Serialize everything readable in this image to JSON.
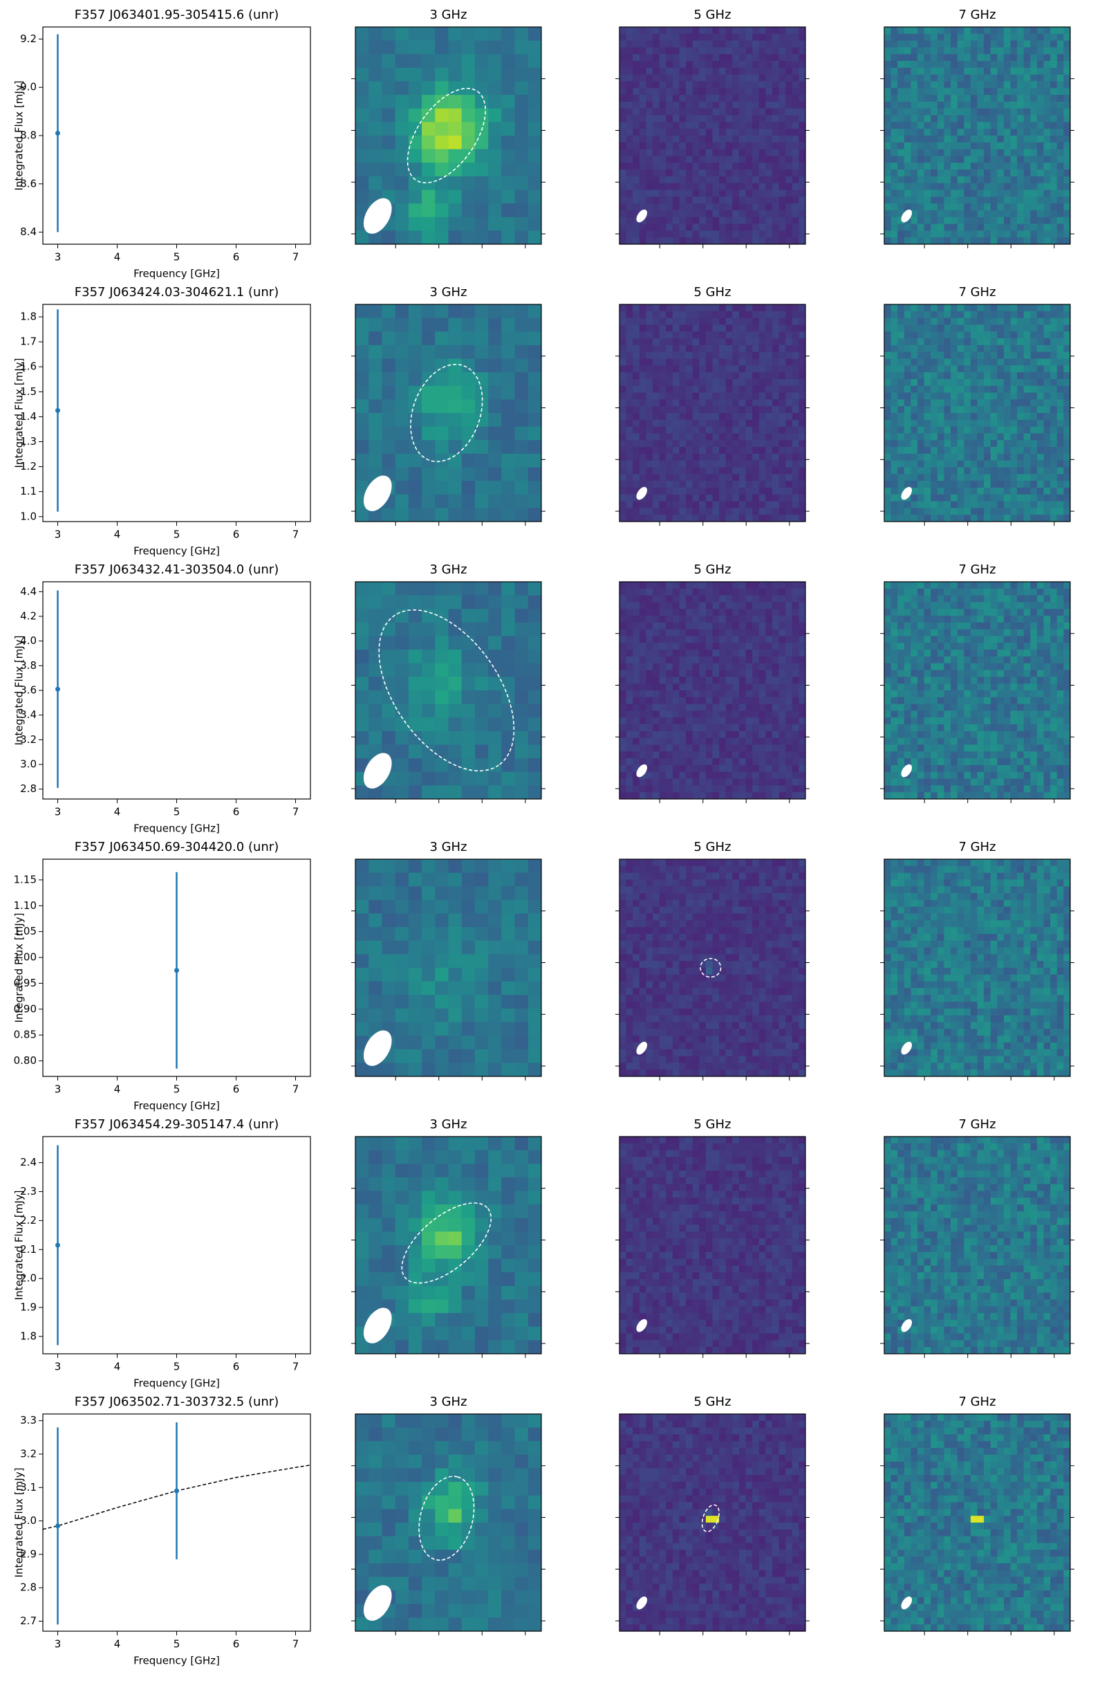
{
  "chart_data": [
    {
      "type": "errorbar",
      "title": "F357 J063401.95-305415.6 (unr)",
      "x_label": "Frequency [GHz]",
      "y_label": "Integrated Flux [mJy]",
      "xlim": [
        2.75,
        7.25
      ],
      "xticks": [
        3,
        4,
        5,
        6,
        7
      ],
      "ylim": [
        8.35,
        9.25
      ],
      "yticks": [
        8.4,
        8.6,
        8.8,
        {
          "value": 9,
          "label": "9.0"
        },
        9.2
      ],
      "series": [
        {
          "color": "#1f77b4",
          "x": [
            3
          ],
          "values": [
            8.81
          ],
          "errors": [
            0.41
          ]
        }
      ],
      "panels": [
        "3 GHz",
        "5 GHz",
        "7 GHz"
      ]
    },
    {
      "type": "errorbar",
      "title": "F357 J063424.03-304621.1 (unr)",
      "x_label": "Frequency [GHz]",
      "y_label": "Integrated Flux [mJy]",
      "xlim": [
        2.75,
        7.25
      ],
      "xticks": [
        3,
        4,
        5,
        6,
        7
      ],
      "ylim": [
        0.98,
        1.85
      ],
      "yticks": [
        {
          "value": 1,
          "label": "1.0"
        },
        1.1,
        1.2,
        1.3,
        1.4,
        1.5,
        1.6,
        1.7,
        1.8
      ],
      "series": [
        {
          "color": "#1f77b4",
          "x": [
            3
          ],
          "values": [
            1.425
          ],
          "errors": [
            0.405
          ]
        }
      ],
      "panels": [
        "3 GHz",
        "5 GHz",
        "7 GHz"
      ]
    },
    {
      "type": "errorbar",
      "title": "F357 J063432.41-303504.0 (unr)",
      "x_label": "Frequency [GHz]",
      "y_label": "Integrated Flux [mJy]",
      "xlim": [
        2.75,
        7.25
      ],
      "xticks": [
        3,
        4,
        5,
        6,
        7
      ],
      "ylim": [
        2.72,
        4.48
      ],
      "yticks": [
        2.8,
        {
          "value": 3,
          "label": "3.0"
        },
        3.2,
        3.4,
        3.6,
        3.8,
        {
          "value": 4,
          "label": "4.0"
        },
        4.2,
        4.4
      ],
      "series": [
        {
          "color": "#1f77b4",
          "x": [
            3
          ],
          "values": [
            3.61
          ],
          "errors": [
            0.8
          ]
        }
      ],
      "panels": [
        "3 GHz",
        "5 GHz",
        "7 GHz"
      ]
    },
    {
      "type": "errorbar",
      "title": "F357 J063450.69-304420.0 (unr)",
      "x_label": "Frequency [GHz]",
      "y_label": "Integrated Flux [mJy]",
      "xlim": [
        2.75,
        7.25
      ],
      "xticks": [
        3,
        4,
        5,
        6,
        7
      ],
      "ylim": [
        0.77,
        1.19
      ],
      "yticks": [
        {
          "value": 0.8,
          "label": "0.80"
        },
        0.85,
        {
          "value": 0.9,
          "label": "0.90"
        },
        0.95,
        {
          "value": 1,
          "label": "1.00"
        },
        1.05,
        {
          "value": 1.1,
          "label": "1.10"
        },
        1.15
      ],
      "series": [
        {
          "color": "#1f77b4",
          "x": [
            5
          ],
          "values": [
            0.975
          ],
          "errors": [
            0.19
          ]
        }
      ],
      "panels": [
        "3 GHz",
        "5 GHz",
        "7 GHz"
      ]
    },
    {
      "type": "errorbar",
      "title": "F357 J063454.29-305147.4 (unr)",
      "x_label": "Frequency [GHz]",
      "y_label": "Integrated Flux [mJy]",
      "xlim": [
        2.75,
        7.25
      ],
      "xticks": [
        3,
        4,
        5,
        6,
        7
      ],
      "ylim": [
        1.74,
        2.49
      ],
      "yticks": [
        1.8,
        1.9,
        {
          "value": 2,
          "label": "2.0"
        },
        2.1,
        2.2,
        2.3,
        2.4
      ],
      "series": [
        {
          "color": "#1f77b4",
          "x": [
            3
          ],
          "values": [
            2.115
          ],
          "errors": [
            0.345
          ]
        }
      ],
      "panels": [
        "3 GHz",
        "5 GHz",
        "7 GHz"
      ]
    },
    {
      "type": "errorbar",
      "title": "F357 J063502.71-303732.5 (unr)",
      "x_label": "Frequency [GHz]",
      "y_label": "Integrated Flux [mJy]",
      "xlim": [
        2.75,
        7.25
      ],
      "xticks": [
        3,
        4,
        5,
        6,
        7
      ],
      "ylim": [
        2.67,
        3.32
      ],
      "yticks": [
        2.7,
        2.8,
        2.9,
        {
          "value": 3,
          "label": "3.0"
        },
        3.1,
        3.2,
        3.3
      ],
      "series": [
        {
          "color": "#1f77b4",
          "x": [
            3,
            5
          ],
          "values": [
            2.985,
            3.09
          ],
          "errors": [
            0.295,
            0.205
          ]
        }
      ],
      "fit": {
        "color": "#000000",
        "style": "dashed",
        "x": [
          2.75,
          3,
          4,
          5,
          6,
          7,
          7.25
        ],
        "values": [
          2.975,
          2.985,
          3.04,
          3.09,
          3.13,
          3.16,
          3.167
        ]
      },
      "panels": [
        "3 GHz",
        "5 GHz",
        "7 GHz"
      ]
    }
  ]
}
